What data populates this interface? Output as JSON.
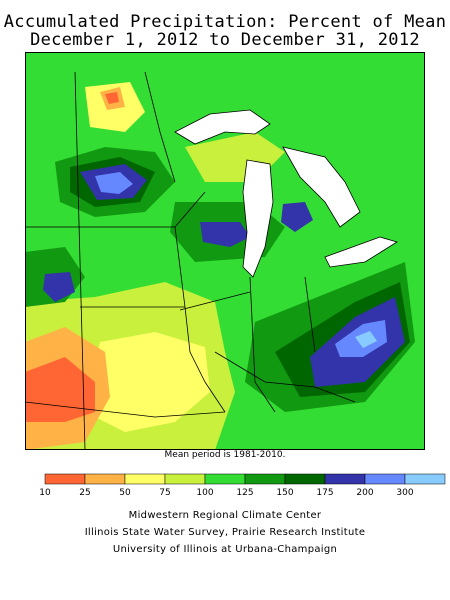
{
  "header": {
    "title_line1": "Accumulated Precipitation: Percent of Mean",
    "title_line2": "December 1, 2012 to December 31, 2012"
  },
  "map": {
    "region": "Midwest United States",
    "note": "Mean period is 1981-2010."
  },
  "legend": {
    "ticks": [
      "10",
      "25",
      "50",
      "75",
      "100",
      "125",
      "150",
      "175",
      "200",
      "300"
    ],
    "bins": [
      {
        "from": "10",
        "to": "25",
        "color": "#ff6633"
      },
      {
        "from": "25",
        "to": "50",
        "color": "#ffb347"
      },
      {
        "from": "50",
        "to": "75",
        "color": "#ffff66"
      },
      {
        "from": "75",
        "to": "100",
        "color": "#c8f03c"
      },
      {
        "from": "100",
        "to": "125",
        "color": "#33dd33"
      },
      {
        "from": "125",
        "to": "150",
        "color": "#119911"
      },
      {
        "from": "150",
        "to": "175",
        "color": "#006600"
      },
      {
        "from": "175",
        "to": "200",
        "color": "#3333aa"
      },
      {
        "from": "200",
        "to": "300",
        "color": "#6688ff"
      },
      {
        "from": "300",
        "to": "",
        "color": "#88ccff"
      }
    ]
  },
  "credits": {
    "line1": "Midwestern Regional Climate Center",
    "line2": "Illinois State Water Survey, Prairie Research Institute",
    "line3": "University of Illinois at Urbana-Champaign"
  }
}
